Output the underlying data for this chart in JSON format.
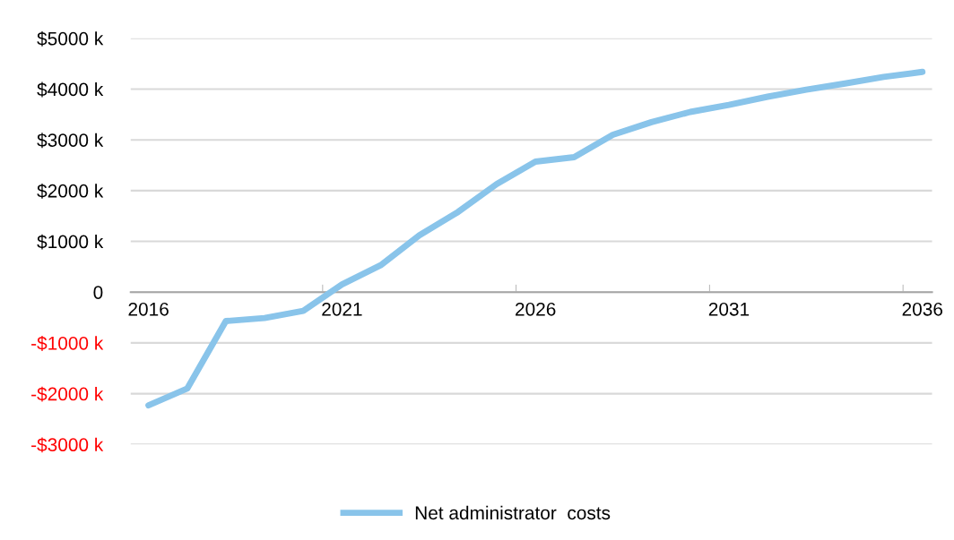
{
  "chart_data": {
    "type": "line",
    "categories": [
      "2016",
      null,
      null,
      null,
      null,
      "2021",
      null,
      null,
      null,
      null,
      "2026",
      null,
      null,
      null,
      null,
      "2031",
      null,
      null,
      null,
      null,
      "2036"
    ],
    "series": [
      {
        "name": "Net administrator  costs",
        "color": "#89c4ea",
        "values": [
          -2230,
          -1900,
          -570,
          -510,
          -370,
          150,
          530,
          1120,
          1580,
          2130,
          2570,
          2660,
          3100,
          3350,
          3550,
          3690,
          3850,
          3990,
          4110,
          4240,
          4340
        ]
      }
    ],
    "ylim": [
      -3000,
      5000
    ],
    "yticks": [
      {
        "value": -3000,
        "label": "-$3000 k"
      },
      {
        "value": -2000,
        "label": "-$2000 k"
      },
      {
        "value": -1000,
        "label": "-$1000 k"
      },
      0,
      {
        "value": 1000,
        "label": "$1000 k"
      },
      {
        "value": 2000,
        "label": "$2000 k"
      },
      {
        "value": 3000,
        "label": "$3000 k"
      },
      {
        "value": 4000,
        "label": "$4000 k"
      },
      {
        "value": 5000,
        "label": "$5000 k"
      }
    ],
    "grid": "y",
    "legend": "bottom",
    "marker": "none",
    "line_style": "solid"
  }
}
